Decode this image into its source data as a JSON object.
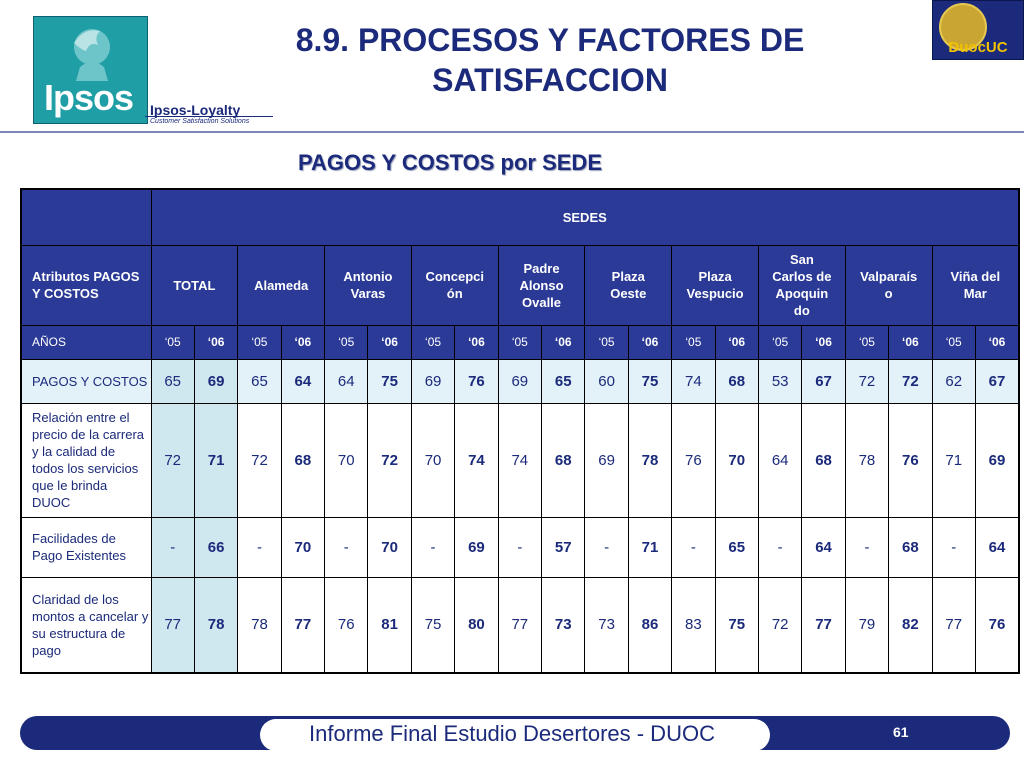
{
  "header": {
    "logo_text": "Ipsos",
    "sublogo_title": "Ipsos-Loyalty",
    "sublogo_tagline": "Customer Satisfaction Solutions",
    "title_line1": "8.9. PROCESOS Y FACTORES DE",
    "title_line2": "SATISFACCION",
    "right_logo_text": "DuocUC",
    "subtitle": "PAGOS Y COSTOS por SEDE"
  },
  "table": {
    "sedes_label": "SEDES",
    "attr_header": "Atributos PAGOS Y COSTOS",
    "columns": [
      "TOTAL",
      "Alameda",
      "Antonio Varas",
      "Concepción",
      "Padre Alonso Ovalle",
      "Plaza Oeste",
      "Plaza Vespucio",
      "San Carlos de Apoquindo",
      "Valparaíso",
      "Viña del Mar"
    ],
    "column_display": [
      "TOTAL",
      "Alameda",
      "Antonio\nVaras",
      "Concepci\nón",
      "Padre\nAlonso\nOvalle",
      "Plaza\nOeste",
      "Plaza\nVespucio",
      "San\nCarlos de\nApoquin\ndo",
      "Valparaís\no",
      "Viña del\nMar"
    ],
    "years_label": "AÑOS",
    "year_a": "‘05",
    "year_b": "‘06",
    "rows": [
      {
        "label": "PAGOS Y COSTOS",
        "values": [
          "65",
          "69",
          "65",
          "64",
          "64",
          "75",
          "69",
          "76",
          "69",
          "65",
          "60",
          "75",
          "74",
          "68",
          "53",
          "67",
          "72",
          "72",
          "62",
          "67"
        ]
      },
      {
        "label": "Relación entre el precio de la carrera y la calidad de todos los servicios que le brinda DUOC",
        "values": [
          "72",
          "71",
          "72",
          "68",
          "70",
          "72",
          "70",
          "74",
          "74",
          "68",
          "69",
          "78",
          "76",
          "70",
          "64",
          "68",
          "78",
          "76",
          "71",
          "69"
        ]
      },
      {
        "label": "Facilidades de Pago Existentes",
        "values": [
          "-",
          "66",
          "-",
          "70",
          "-",
          "70",
          "-",
          "69",
          "-",
          "57",
          "-",
          "71",
          "-",
          "65",
          "-",
          "64",
          "-",
          "68",
          "-",
          "64"
        ]
      },
      {
        "label": "Claridad de los montos a cancelar y su estructura de pago",
        "values": [
          "77",
          "78",
          "78",
          "77",
          "76",
          "81",
          "75",
          "80",
          "77",
          "73",
          "73",
          "86",
          "83",
          "75",
          "72",
          "77",
          "79",
          "82",
          "77",
          "76"
        ]
      }
    ]
  },
  "footer": {
    "text": "Informe Final Estudio Desertores - DUOC",
    "page": "61"
  }
}
